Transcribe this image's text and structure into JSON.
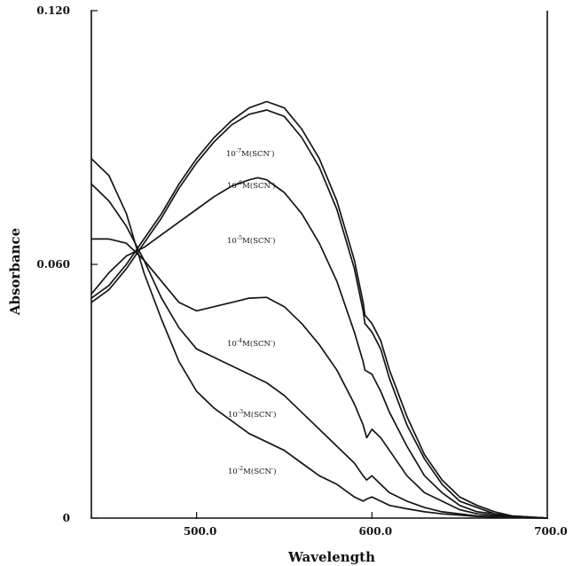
{
  "chart_data": {
    "type": "line",
    "title": "",
    "xlabel": "Wavelength",
    "ylabel": "Absorbance",
    "xlim": [
      440,
      700
    ],
    "ylim": [
      0,
      0.12
    ],
    "x_ticks": [
      {
        "value": 500,
        "label": "500.0"
      },
      {
        "value": 600,
        "label": "600.0"
      },
      {
        "value": 700,
        "label": "700.0"
      }
    ],
    "y_ticks": [
      {
        "value": 0,
        "label": "0"
      },
      {
        "value": 0.06,
        "label": "0.060"
      },
      {
        "value": 0.12,
        "label": "0.120"
      }
    ],
    "grid": false,
    "annotations": [
      {
        "id": "a7",
        "base": "10",
        "exp": "-7",
        "text": "M(SCN",
        "sup2": "-",
        "close": ")"
      },
      {
        "id": "a6",
        "base": "10",
        "exp": "-6",
        "text": "M(SCN",
        "sup2": "-",
        "close": ")"
      },
      {
        "id": "a5",
        "base": "10",
        "exp": "-5",
        "text": "M(SCN",
        "sup2": "-",
        "close": ")"
      },
      {
        "id": "a4",
        "base": "10",
        "exp": "-4",
        "text": "M(SCN",
        "sup2": "-",
        "close": ")"
      },
      {
        "id": "a3",
        "base": "10",
        "exp": "-3",
        "text": "M(SCN",
        "sup2": "-",
        "close": ")"
      },
      {
        "id": "a2",
        "base": "10",
        "exp": "-2",
        "text": "M(SCN",
        "sup2": "-",
        "close": ")"
      }
    ],
    "series": [
      {
        "name": "10-7M(SCN-)",
        "points": [
          [
            440,
            0.052
          ],
          [
            450,
            0.055
          ],
          [
            460,
            0.06
          ],
          [
            470,
            0.066
          ],
          [
            480,
            0.072
          ],
          [
            490,
            0.079
          ],
          [
            500,
            0.085
          ],
          [
            510,
            0.09
          ],
          [
            520,
            0.094
          ],
          [
            530,
            0.097
          ],
          [
            540,
            0.0985
          ],
          [
            550,
            0.097
          ],
          [
            560,
            0.092
          ],
          [
            570,
            0.085
          ],
          [
            580,
            0.075
          ],
          [
            590,
            0.061
          ],
          [
            595,
            0.051
          ],
          [
            596,
            0.048
          ],
          [
            600,
            0.046
          ],
          [
            605,
            0.042
          ],
          [
            610,
            0.035
          ],
          [
            620,
            0.024
          ],
          [
            630,
            0.015
          ],
          [
            640,
            0.009
          ],
          [
            650,
            0.005
          ],
          [
            660,
            0.003
          ],
          [
            670,
            0.0015
          ],
          [
            680,
            0.0005
          ],
          [
            700,
            0
          ]
        ]
      },
      {
        "name": "10-6M(SCN-)",
        "points": [
          [
            440,
            0.051
          ],
          [
            450,
            0.054
          ],
          [
            460,
            0.059
          ],
          [
            470,
            0.065
          ],
          [
            480,
            0.071
          ],
          [
            490,
            0.078
          ],
          [
            500,
            0.084
          ],
          [
            510,
            0.089
          ],
          [
            520,
            0.093
          ],
          [
            530,
            0.0955
          ],
          [
            540,
            0.0965
          ],
          [
            550,
            0.095
          ],
          [
            560,
            0.09
          ],
          [
            570,
            0.083
          ],
          [
            580,
            0.073
          ],
          [
            590,
            0.059
          ],
          [
            595,
            0.049
          ],
          [
            596,
            0.046
          ],
          [
            600,
            0.044
          ],
          [
            605,
            0.04
          ],
          [
            610,
            0.033
          ],
          [
            620,
            0.022
          ],
          [
            630,
            0.014
          ],
          [
            640,
            0.008
          ],
          [
            650,
            0.004
          ],
          [
            660,
            0.0025
          ],
          [
            670,
            0.001
          ],
          [
            680,
            0.0005
          ],
          [
            700,
            0
          ]
        ]
      },
      {
        "name": "10-5M(SCN-)",
        "points": [
          [
            440,
            0.053
          ],
          [
            450,
            0.058
          ],
          [
            460,
            0.062
          ],
          [
            470,
            0.064
          ],
          [
            480,
            0.067
          ],
          [
            490,
            0.07
          ],
          [
            500,
            0.073
          ],
          [
            510,
            0.076
          ],
          [
            520,
            0.0785
          ],
          [
            530,
            0.08
          ],
          [
            535,
            0.0805
          ],
          [
            540,
            0.08
          ],
          [
            550,
            0.077
          ],
          [
            560,
            0.072
          ],
          [
            570,
            0.065
          ],
          [
            580,
            0.056
          ],
          [
            590,
            0.044
          ],
          [
            595,
            0.037
          ],
          [
            596,
            0.035
          ],
          [
            600,
            0.034
          ],
          [
            605,
            0.03
          ],
          [
            610,
            0.025
          ],
          [
            620,
            0.017
          ],
          [
            630,
            0.01
          ],
          [
            640,
            0.006
          ],
          [
            650,
            0.003
          ],
          [
            660,
            0.0015
          ],
          [
            670,
            0.001
          ],
          [
            680,
            0.0003
          ],
          [
            700,
            0
          ]
        ]
      },
      {
        "name": "10-4M(SCN-)",
        "points": [
          [
            440,
            0.066
          ],
          [
            450,
            0.066
          ],
          [
            460,
            0.065
          ],
          [
            470,
            0.061
          ],
          [
            480,
            0.056
          ],
          [
            490,
            0.051
          ],
          [
            500,
            0.049
          ],
          [
            510,
            0.05
          ],
          [
            520,
            0.051
          ],
          [
            530,
            0.052
          ],
          [
            540,
            0.0522
          ],
          [
            550,
            0.05
          ],
          [
            560,
            0.046
          ],
          [
            570,
            0.041
          ],
          [
            580,
            0.035
          ],
          [
            590,
            0.027
          ],
          [
            595,
            0.022
          ],
          [
            597,
            0.019
          ],
          [
            600,
            0.021
          ],
          [
            605,
            0.019
          ],
          [
            610,
            0.016
          ],
          [
            620,
            0.01
          ],
          [
            630,
            0.006
          ],
          [
            640,
            0.004
          ],
          [
            650,
            0.002
          ],
          [
            660,
            0.001
          ],
          [
            680,
            0.0003
          ],
          [
            700,
            0
          ]
        ]
      },
      {
        "name": "10-3M(SCN-)",
        "points": [
          [
            440,
            0.079
          ],
          [
            450,
            0.075
          ],
          [
            460,
            0.069
          ],
          [
            470,
            0.061
          ],
          [
            480,
            0.052
          ],
          [
            490,
            0.045
          ],
          [
            500,
            0.04
          ],
          [
            510,
            0.038
          ],
          [
            520,
            0.036
          ],
          [
            530,
            0.034
          ],
          [
            540,
            0.032
          ],
          [
            550,
            0.029
          ],
          [
            560,
            0.025
          ],
          [
            570,
            0.021
          ],
          [
            580,
            0.017
          ],
          [
            590,
            0.013
          ],
          [
            595,
            0.01
          ],
          [
            597,
            0.009
          ],
          [
            600,
            0.01
          ],
          [
            605,
            0.008
          ],
          [
            610,
            0.006
          ],
          [
            620,
            0.004
          ],
          [
            630,
            0.0025
          ],
          [
            640,
            0.0015
          ],
          [
            650,
            0.001
          ],
          [
            660,
            0.0005
          ],
          [
            680,
            0.0002
          ],
          [
            700,
            0
          ]
        ]
      },
      {
        "name": "10-2M(SCN-)",
        "points": [
          [
            440,
            0.085
          ],
          [
            450,
            0.081
          ],
          [
            460,
            0.072
          ],
          [
            470,
            0.058
          ],
          [
            480,
            0.047
          ],
          [
            490,
            0.037
          ],
          [
            500,
            0.03
          ],
          [
            510,
            0.026
          ],
          [
            520,
            0.023
          ],
          [
            530,
            0.02
          ],
          [
            540,
            0.018
          ],
          [
            550,
            0.016
          ],
          [
            560,
            0.013
          ],
          [
            570,
            0.01
          ],
          [
            580,
            0.008
          ],
          [
            590,
            0.005
          ],
          [
            595,
            0.004
          ],
          [
            597,
            0.0045
          ],
          [
            600,
            0.005
          ],
          [
            605,
            0.004
          ],
          [
            610,
            0.003
          ],
          [
            620,
            0.0022
          ],
          [
            630,
            0.0015
          ],
          [
            640,
            0.001
          ],
          [
            650,
            0.0007
          ],
          [
            660,
            0.0004
          ],
          [
            680,
            0.0001
          ],
          [
            700,
            0
          ]
        ]
      }
    ]
  }
}
